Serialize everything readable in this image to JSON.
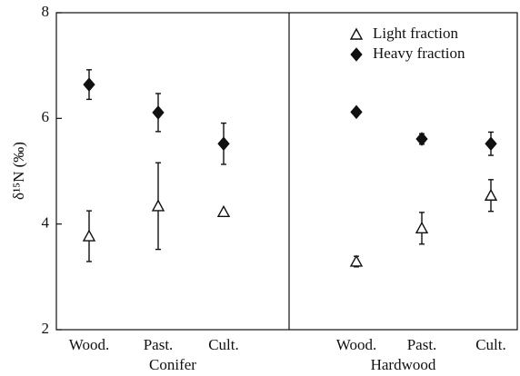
{
  "chart_data": {
    "type": "scatter",
    "ylabel": "δ¹⁵N (‰)",
    "ylim": [
      2,
      8
    ],
    "yticks": [
      2,
      4,
      6,
      8
    ],
    "groups": [
      "Conifer",
      "Hardwood"
    ],
    "categories": [
      "Wood.",
      "Past.",
      "Cult.",
      "Wood.",
      "Past.",
      "Cult."
    ],
    "series": [
      {
        "name": "Light fraction",
        "marker": "triangle",
        "color": "#111111",
        "values": [
          3.77,
          4.34,
          4.23,
          3.29,
          3.92,
          4.54
        ],
        "errors": [
          0.48,
          0.82,
          0,
          0.1,
          0.3,
          0.3
        ]
      },
      {
        "name": "Heavy fraction",
        "marker": "diamond",
        "color": "#111111",
        "values": [
          6.64,
          6.11,
          5.52,
          6.12,
          5.61,
          5.52
        ],
        "errors": [
          0.28,
          0.36,
          0.39,
          0,
          0.1,
          0.22
        ]
      }
    ],
    "legend": "upper right"
  }
}
